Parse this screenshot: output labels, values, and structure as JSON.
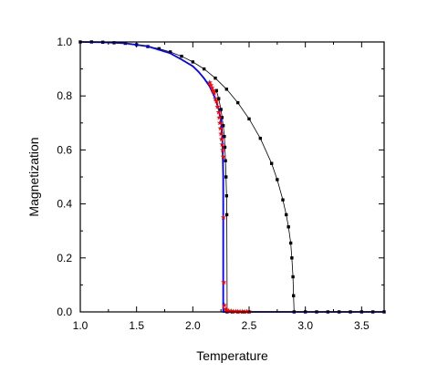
{
  "chart_data": {
    "type": "scatter",
    "xlabel": "Temperature",
    "ylabel": "Magnetization",
    "xlim": [
      1.0,
      3.7
    ],
    "ylim": [
      0.0,
      1.0
    ],
    "xticks": [
      1.0,
      1.5,
      2.0,
      2.5,
      3.0,
      3.5
    ],
    "xtick_labels": [
      "1.0",
      "1.5",
      "2.0",
      "2.5",
      "3.0",
      "3.5"
    ],
    "yticks": [
      0.0,
      0.2,
      0.4,
      0.6,
      0.8,
      1.0
    ],
    "ytick_labels": [
      "0.0",
      "0.2",
      "0.4",
      "0.6",
      "0.8",
      "1.0"
    ],
    "grid": false,
    "legend": "none",
    "series": [
      {
        "color": "#000000",
        "marker": "square",
        "line": true,
        "points": [
          [
            1.0,
            1.0
          ],
          [
            1.1,
            1.0
          ],
          [
            1.2,
            0.999
          ],
          [
            1.3,
            0.997
          ],
          [
            1.4,
            0.995
          ],
          [
            1.5,
            0.99
          ],
          [
            1.6,
            0.983
          ],
          [
            1.7,
            0.975
          ],
          [
            1.8,
            0.963
          ],
          [
            1.9,
            0.947
          ],
          [
            2.0,
            0.926
          ],
          [
            2.1,
            0.9
          ],
          [
            2.2,
            0.866
          ],
          [
            2.3,
            0.825
          ],
          [
            2.4,
            0.775
          ],
          [
            2.5,
            0.715
          ],
          [
            2.6,
            0.643
          ],
          [
            2.7,
            0.55
          ],
          [
            2.75,
            0.49
          ],
          [
            2.8,
            0.415
          ],
          [
            2.83,
            0.36
          ],
          [
            2.85,
            0.315
          ],
          [
            2.87,
            0.255
          ],
          [
            2.88,
            0.2
          ],
          [
            2.89,
            0.13
          ],
          [
            2.895,
            0.06
          ],
          [
            2.9,
            0.0
          ],
          [
            3.0,
            0.0
          ],
          [
            3.1,
            0.0
          ],
          [
            3.2,
            0.0
          ],
          [
            3.3,
            0.0
          ],
          [
            3.4,
            0.0
          ],
          [
            3.5,
            0.0
          ],
          [
            3.6,
            0.0
          ],
          [
            3.7,
            0.0
          ]
        ]
      },
      {
        "color": "#000000",
        "marker": "square",
        "line": true,
        "points": [
          [
            2.21,
            0.82
          ],
          [
            2.23,
            0.79
          ],
          [
            2.25,
            0.75
          ],
          [
            2.26,
            0.72
          ],
          [
            2.27,
            0.69
          ],
          [
            2.28,
            0.65
          ],
          [
            2.285,
            0.61
          ],
          [
            2.29,
            0.56
          ],
          [
            2.295,
            0.5
          ],
          [
            2.3,
            0.43
          ],
          [
            2.302,
            0.36
          ],
          [
            2.305,
            0.0
          ],
          [
            2.35,
            0.0
          ],
          [
            2.4,
            0.0
          ],
          [
            2.45,
            0.0
          ],
          [
            2.5,
            0.0
          ]
        ]
      },
      {
        "color": "#0000ff",
        "marker": "none",
        "line": true,
        "points": [
          [
            1.0,
            1.0
          ],
          [
            1.2,
            0.999
          ],
          [
            1.4,
            0.995
          ],
          [
            1.6,
            0.984
          ],
          [
            1.8,
            0.958
          ],
          [
            1.9,
            0.935
          ],
          [
            2.0,
            0.91
          ],
          [
            2.05,
            0.89
          ],
          [
            2.1,
            0.865
          ],
          [
            2.15,
            0.835
          ],
          [
            2.2,
            0.79
          ],
          [
            2.23,
            0.75
          ],
          [
            2.25,
            0.71
          ],
          [
            2.26,
            0.66
          ],
          [
            2.265,
            0.6
          ],
          [
            2.27,
            0.5
          ],
          [
            2.27,
            0.0
          ],
          [
            3.7,
            0.0
          ]
        ]
      },
      {
        "color": "#ff0000",
        "marker": "star",
        "line": false,
        "points": [
          [
            2.15,
            0.85
          ],
          [
            2.16,
            0.84
          ],
          [
            2.17,
            0.83
          ],
          [
            2.18,
            0.82
          ],
          [
            2.19,
            0.81
          ],
          [
            2.2,
            0.79
          ],
          [
            2.21,
            0.78
          ],
          [
            2.22,
            0.76
          ],
          [
            2.23,
            0.74
          ],
          [
            2.235,
            0.72
          ],
          [
            2.24,
            0.7
          ],
          [
            2.245,
            0.68
          ],
          [
            2.25,
            0.66
          ],
          [
            2.255,
            0.64
          ],
          [
            2.26,
            0.62
          ],
          [
            2.265,
            0.6
          ],
          [
            2.27,
            0.575
          ],
          [
            2.272,
            0.35
          ],
          [
            2.275,
            0.11
          ],
          [
            2.28,
            0.025
          ],
          [
            2.29,
            0.01
          ],
          [
            2.3,
            0.006
          ],
          [
            2.32,
            0.004
          ],
          [
            2.34,
            0.003
          ],
          [
            2.36,
            0.002
          ],
          [
            2.38,
            0.002
          ],
          [
            2.4,
            0.001
          ],
          [
            2.42,
            0.001
          ],
          [
            2.44,
            0.001
          ],
          [
            2.46,
            0.001
          ],
          [
            2.48,
            0.001
          ],
          [
            2.5,
            0.001
          ]
        ]
      }
    ]
  }
}
